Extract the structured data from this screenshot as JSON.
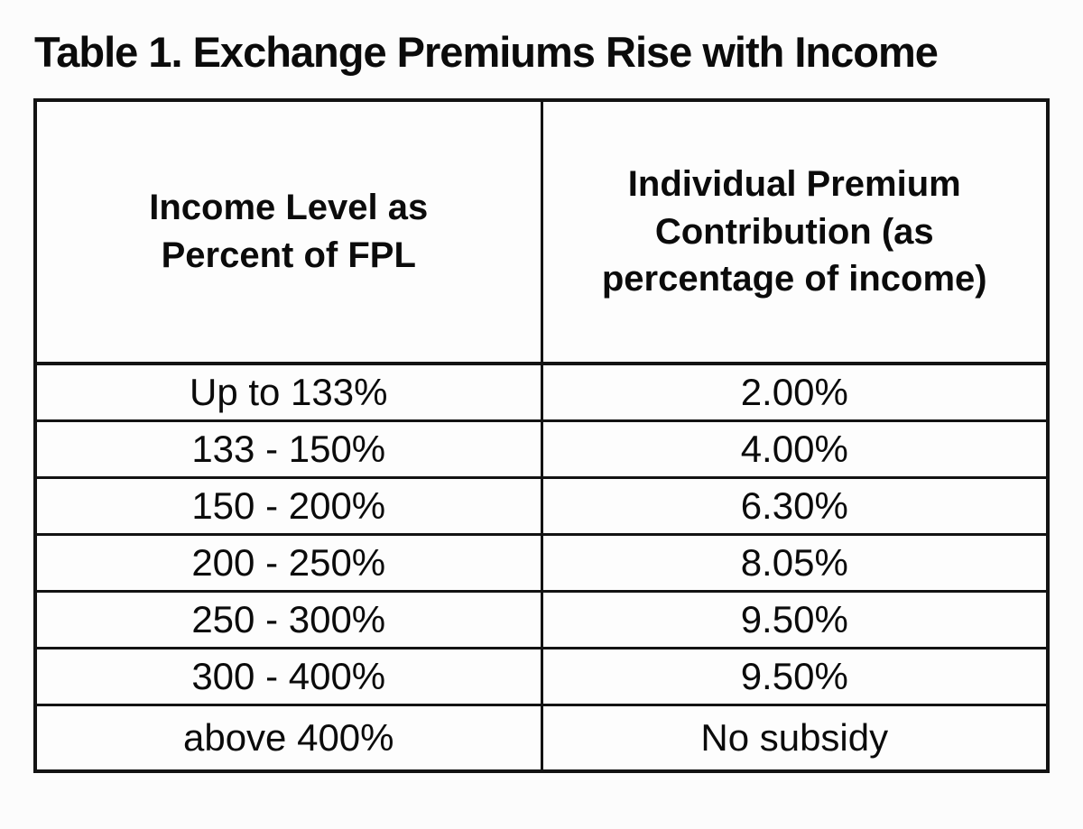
{
  "title": "Table 1. Exchange Premiums Rise with Income",
  "table": {
    "columns": [
      {
        "name": "Income Level as Percent of FPL",
        "lines": [
          "Income Level as",
          "Percent of FPL"
        ]
      },
      {
        "name": "Individual Premium Contribution (as percentage of income)",
        "lines": [
          "Individual Premium",
          "Contribution (as",
          "percentage of income)"
        ]
      }
    ],
    "rows": [
      {
        "income_level": "Up to 133%",
        "premium_contribution": "2.00%"
      },
      {
        "income_level": "133 - 150%",
        "premium_contribution": "4.00%"
      },
      {
        "income_level": "150 - 200%",
        "premium_contribution": "6.30%"
      },
      {
        "income_level": "200 - 250%",
        "premium_contribution": "8.05%"
      },
      {
        "income_level": "250 - 300%",
        "premium_contribution": "9.50%"
      },
      {
        "income_level": "300 - 400%",
        "premium_contribution": "9.50%"
      },
      {
        "income_level": "above 400%",
        "premium_contribution": "No subsidy"
      }
    ]
  },
  "colors": {
    "text": "#0b0b0b",
    "border": "#131313",
    "background": "#fcfcfc"
  }
}
